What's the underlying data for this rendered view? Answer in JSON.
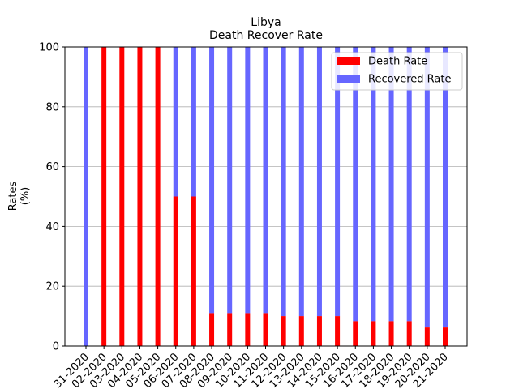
{
  "chart_data": {
    "type": "bar",
    "title": "Libya",
    "subtitle": "Death Recover Rate",
    "xlabel": "",
    "ylabel": "Rates\n(%)",
    "ylim": [
      0,
      100
    ],
    "yticks": [
      0,
      20,
      40,
      60,
      80,
      100
    ],
    "grid": "horizontal",
    "legend_placement": "top-right",
    "categories": [
      "03-31-2020",
      "04-02-2020",
      "04-03-2020",
      "04-04-2020",
      "04-05-2020",
      "04-06-2020",
      "04-07-2020",
      "04-08-2020",
      "04-09-2020",
      "04-10-2020",
      "04-11-2020",
      "04-12-2020",
      "04-13-2020",
      "04-14-2020",
      "04-15-2020",
      "04-16-2020",
      "04-17-2020",
      "04-18-2020",
      "04-19-2020",
      "04-20-2020",
      "04-21-2020"
    ],
    "tick_labels": [
      "31-2020",
      "02-2020",
      "03-2020",
      "04-2020",
      "05-2020",
      "06-2020",
      "07-2020",
      "08-2020",
      "09-2020",
      "10-2020",
      "11-2020",
      "12-2020",
      "13-2020",
      "14-2020",
      "15-2020",
      "16-2020",
      "17-2020",
      "18-2020",
      "19-2020",
      "20-2020",
      "21-2020"
    ],
    "series": [
      {
        "name": "Recovered Rate",
        "color": "#6666ff",
        "values": [
          100,
          0,
          0,
          0,
          0,
          50,
          50,
          89,
          89,
          89,
          89,
          90,
          90,
          90,
          90,
          91.7,
          91.7,
          91.7,
          91.7,
          93.8,
          93.8
        ]
      },
      {
        "name": "Death Rate",
        "color": "#ff0000",
        "values": [
          0,
          100,
          100,
          100,
          100,
          50,
          50,
          11,
          11,
          11,
          11,
          10,
          10,
          10,
          10,
          8.3,
          8.3,
          8.3,
          8.3,
          6.2,
          6.2
        ]
      }
    ]
  }
}
